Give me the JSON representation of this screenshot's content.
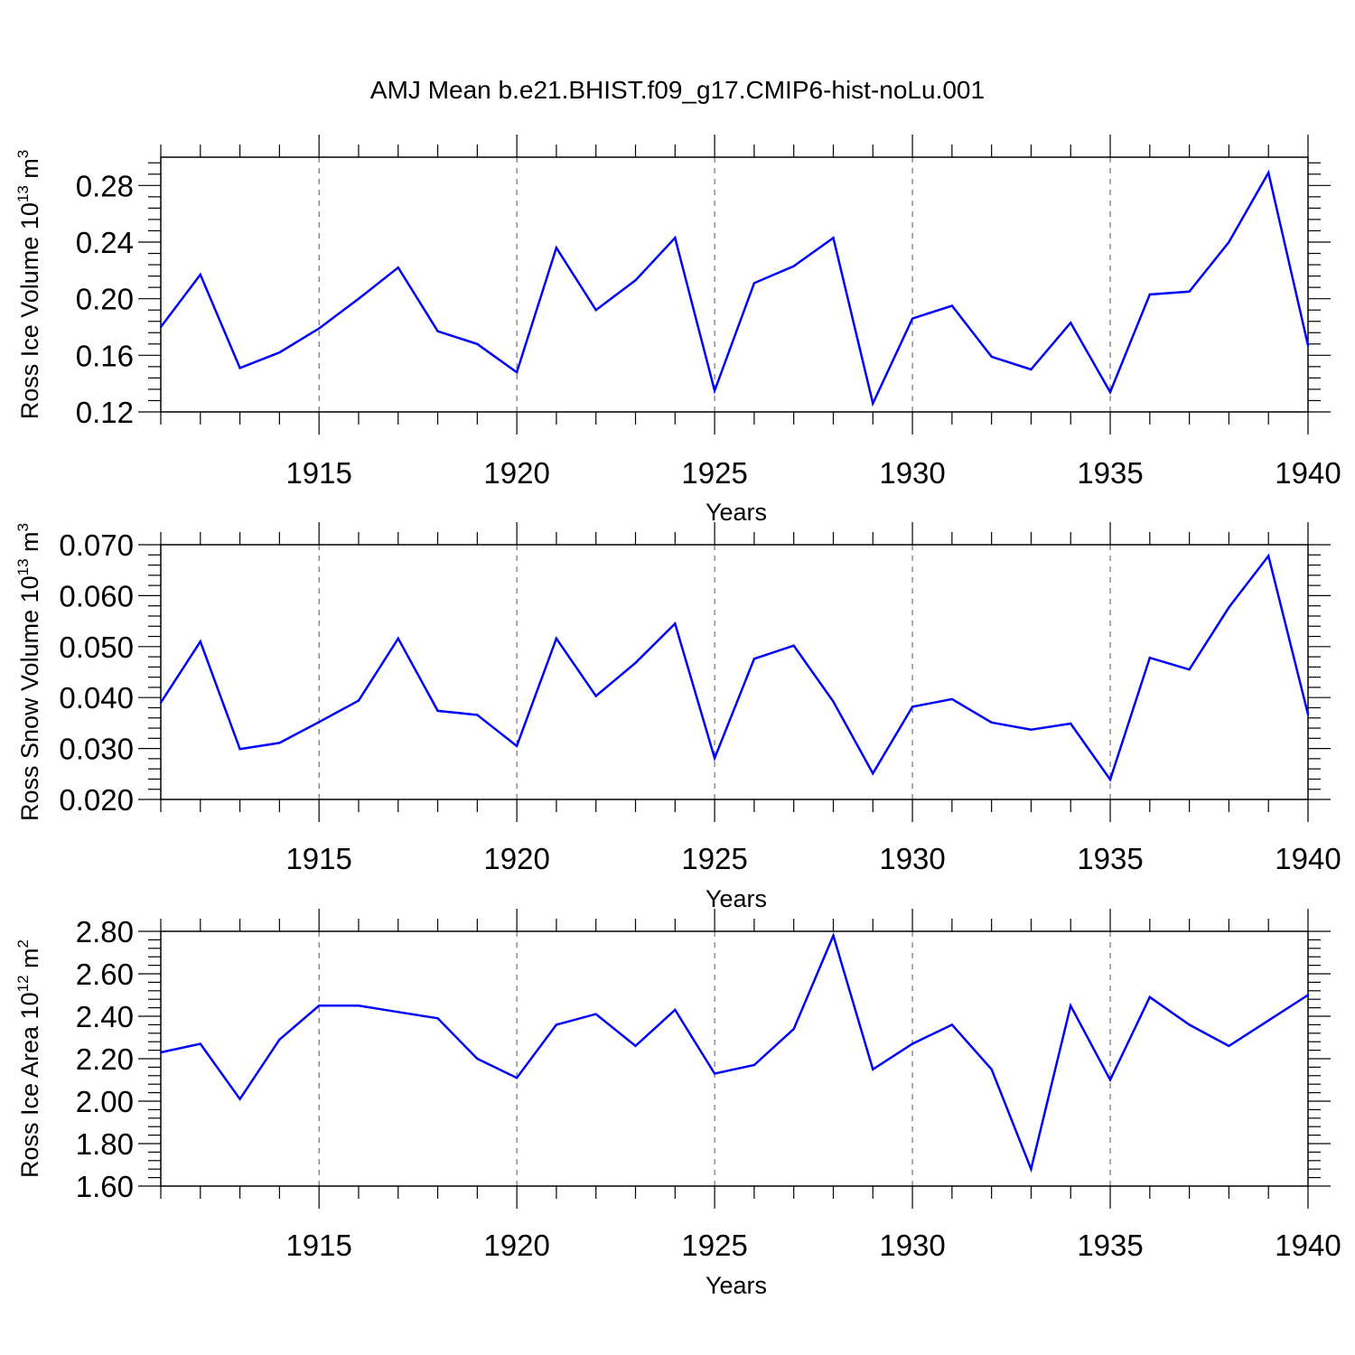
{
  "title": "AMJ Mean b.e21.BHIST.f09_g17.CMIP6-hist-noLu.001",
  "line_color": "#0000ff",
  "chart_data": [
    {
      "type": "line",
      "ylabel": "Ross Ice Volume 10",
      "ylabel_sup": "13",
      "ylabel_unit": "m",
      "ylabel_unit_sup": "3",
      "xlabel": "Years",
      "xlim": [
        1911,
        1940
      ],
      "ylim": [
        0.12,
        0.3
      ],
      "yticks": [
        "0.12",
        "0.16",
        "0.20",
        "0.24",
        "0.28"
      ],
      "ytick_values": [
        0.12,
        0.16,
        0.2,
        0.24,
        0.28
      ],
      "xticks": [
        "1915",
        "1920",
        "1925",
        "1930",
        "1935",
        "1940"
      ],
      "xtick_values": [
        1915,
        1920,
        1925,
        1930,
        1935,
        1940
      ],
      "grid": "dashed vertical at major x ticks",
      "x": [
        1911,
        1912,
        1913,
        1914,
        1915,
        1916,
        1917,
        1918,
        1919,
        1920,
        1921,
        1922,
        1923,
        1924,
        1925,
        1926,
        1927,
        1928,
        1929,
        1930,
        1931,
        1932,
        1933,
        1934,
        1935,
        1936,
        1937,
        1938,
        1939,
        1940
      ],
      "values": [
        0.18,
        0.217,
        0.151,
        0.162,
        0.179,
        0.2,
        0.222,
        0.177,
        0.168,
        0.148,
        0.236,
        0.192,
        0.213,
        0.243,
        0.135,
        0.211,
        0.223,
        0.243,
        0.126,
        0.186,
        0.195,
        0.159,
        0.15,
        0.183,
        0.134,
        0.203,
        0.205,
        0.24,
        0.289,
        0.167
      ]
    },
    {
      "type": "line",
      "ylabel": "Ross Snow Volume 10",
      "ylabel_sup": "13",
      "ylabel_unit": "m",
      "ylabel_unit_sup": "3",
      "xlabel": "Years",
      "xlim": [
        1911,
        1940
      ],
      "ylim": [
        0.02,
        0.07
      ],
      "yticks": [
        "0.020",
        "0.030",
        "0.040",
        "0.050",
        "0.060",
        "0.070"
      ],
      "ytick_values": [
        0.02,
        0.03,
        0.04,
        0.05,
        0.06,
        0.07
      ],
      "xticks": [
        "1915",
        "1920",
        "1925",
        "1930",
        "1935",
        "1940"
      ],
      "xtick_values": [
        1915,
        1920,
        1925,
        1930,
        1935,
        1940
      ],
      "grid": "dashed vertical at major x ticks",
      "x": [
        1911,
        1912,
        1913,
        1914,
        1915,
        1916,
        1917,
        1918,
        1919,
        1920,
        1921,
        1922,
        1923,
        1924,
        1925,
        1926,
        1927,
        1928,
        1929,
        1930,
        1931,
        1932,
        1933,
        1934,
        1935,
        1936,
        1937,
        1938,
        1939,
        1940
      ],
      "values": [
        0.039,
        0.051,
        0.0299,
        0.0311,
        0.0352,
        0.0394,
        0.0516,
        0.0374,
        0.0366,
        0.0305,
        0.0516,
        0.0403,
        0.0468,
        0.0545,
        0.0281,
        0.0476,
        0.0502,
        0.0392,
        0.0251,
        0.0382,
        0.0397,
        0.0351,
        0.0337,
        0.0349,
        0.0239,
        0.0478,
        0.0455,
        0.0577,
        0.0678,
        0.0367
      ]
    },
    {
      "type": "line",
      "ylabel": "Ross Ice Area 10",
      "ylabel_sup": "12",
      "ylabel_unit": "m",
      "ylabel_unit_sup": "2",
      "xlabel": "Years",
      "xlim": [
        1911,
        1940
      ],
      "ylim": [
        1.6,
        2.8
      ],
      "yticks": [
        "1.60",
        "1.80",
        "2.00",
        "2.20",
        "2.40",
        "2.60",
        "2.80"
      ],
      "ytick_values": [
        1.6,
        1.8,
        2.0,
        2.2,
        2.4,
        2.6,
        2.8
      ],
      "xticks": [
        "1915",
        "1920",
        "1925",
        "1930",
        "1935",
        "1940"
      ],
      "xtick_values": [
        1915,
        1920,
        1925,
        1930,
        1935,
        1940
      ],
      "grid": "dashed vertical at major x ticks",
      "x": [
        1911,
        1912,
        1913,
        1914,
        1915,
        1916,
        1917,
        1918,
        1919,
        1920,
        1921,
        1922,
        1923,
        1924,
        1925,
        1926,
        1927,
        1928,
        1929,
        1930,
        1931,
        1932,
        1933,
        1934,
        1935,
        1936,
        1937,
        1938,
        1939,
        1940
      ],
      "values": [
        2.23,
        2.27,
        2.01,
        2.29,
        2.45,
        2.45,
        2.42,
        2.39,
        2.2,
        2.11,
        2.36,
        2.41,
        2.26,
        2.43,
        2.13,
        2.17,
        2.34,
        2.78,
        2.15,
        2.27,
        2.36,
        2.15,
        1.68,
        2.45,
        2.1,
        2.49,
        2.36,
        2.26,
        2.38,
        2.5
      ]
    }
  ]
}
